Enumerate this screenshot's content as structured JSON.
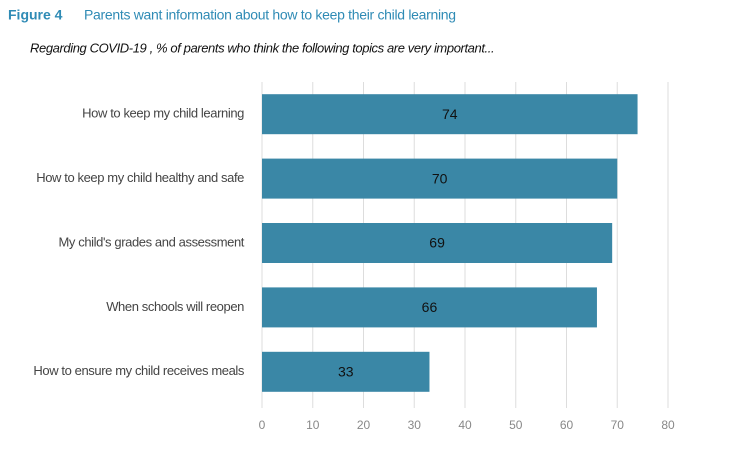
{
  "chart_data": {
    "type": "bar",
    "orientation": "horizontal",
    "figure_label": "Figure 4",
    "title": "Parents want information about how to keep their child learning",
    "subtitle": "Regarding COVID-19 , % of parents who think the following topics are very important...",
    "categories": [
      "How to keep my child learning",
      "How to keep my child healthy and safe",
      "My child's grades and assessment",
      "When schools will reopen",
      "How to ensure my child receives meals"
    ],
    "values": [
      74,
      70,
      69,
      66,
      33
    ],
    "color": "#3a87a6",
    "xlim": [
      0,
      80
    ],
    "xticks": [
      0,
      10,
      20,
      30,
      40,
      50,
      60,
      70,
      80
    ],
    "grid": true
  }
}
